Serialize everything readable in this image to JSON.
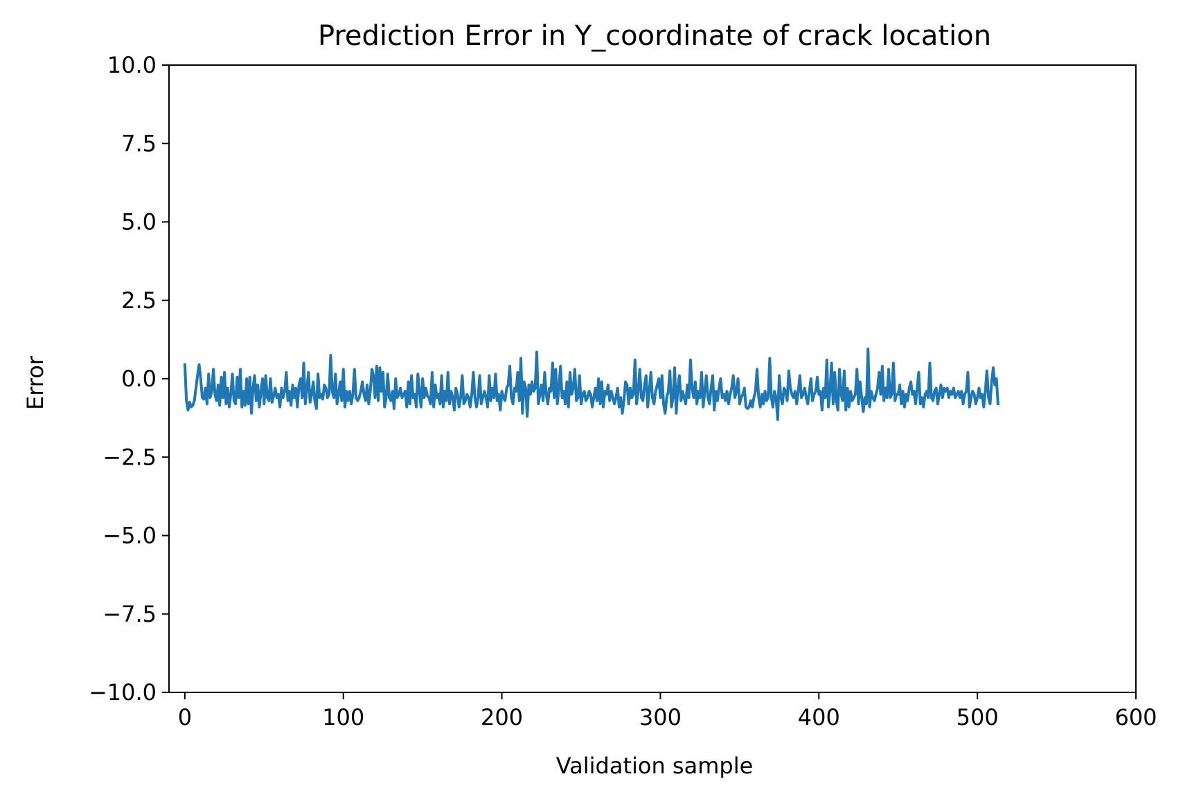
{
  "chart_data": {
    "type": "line",
    "title": "Prediction Error in Y_coordinate of crack location",
    "xlabel": "Validation sample",
    "ylabel": "Error",
    "xlim": [
      -10,
      600
    ],
    "ylim": [
      -10,
      10
    ],
    "x_ticks": [
      0,
      100,
      200,
      300,
      400,
      500,
      600
    ],
    "x_tick_labels": [
      "0",
      "100",
      "200",
      "300",
      "400",
      "500",
      "600"
    ],
    "y_ticks": [
      10,
      7.5,
      5,
      2.5,
      0,
      -2.5,
      -5,
      -7.5,
      -10
    ],
    "y_tick_labels": [
      "10.0",
      "7.5",
      "5.0",
      "2.5",
      "0.0",
      "−2.5",
      "−5.0",
      "−7.5",
      "−10.0"
    ],
    "grid": false,
    "series": [
      {
        "color": "#1f77b4",
        "x_start": 0,
        "x_step": 1,
        "y": [
          0.45,
          -0.7,
          -1.0,
          -0.75,
          -0.9,
          -0.85,
          -0.7,
          -0.3,
          0.1,
          0.45,
          0.0,
          -0.6,
          -0.65,
          -0.3,
          -0.8,
          0.15,
          -0.6,
          -0.4,
          0.3,
          -0.5,
          -0.7,
          -0.2,
          -0.85,
          0.05,
          -0.6,
          0.2,
          -0.8,
          -0.3,
          -0.9,
          -0.5,
          0.15,
          -0.7,
          -0.8,
          0.05,
          -0.6,
          0.3,
          -0.9,
          -0.4,
          -0.85,
          0.0,
          -0.8,
          0.05,
          -1.1,
          -0.3,
          0.1,
          -0.7,
          -0.2,
          -0.9,
          -0.4,
          0.0,
          -0.8,
          0.1,
          -0.6,
          -0.7,
          0.0,
          -0.75,
          -0.55,
          -0.3,
          -0.6,
          -0.5,
          -0.9,
          -0.3,
          -0.6,
          -0.4,
          0.2,
          -0.7,
          -0.4,
          -0.85,
          -0.2,
          -0.6,
          -0.3,
          -0.9,
          -0.2,
          0.0,
          -0.6,
          0.5,
          -0.8,
          -0.3,
          0.2,
          -0.75,
          -0.5,
          -0.1,
          -0.7,
          -0.95,
          0.15,
          -0.6,
          -0.5,
          -0.65,
          -0.2,
          -0.3,
          -0.6,
          -0.5,
          0.75,
          -0.4,
          -0.6,
          0.15,
          -0.8,
          -0.5,
          -0.1,
          -0.7,
          0.3,
          -0.9,
          -0.4,
          -0.7,
          -0.4,
          -0.8,
          -0.5,
          0.3,
          -0.6,
          -0.7,
          -0.6,
          -0.4,
          -0.1,
          -0.5,
          -0.7,
          -0.2,
          -0.8,
          -0.4,
          0.3,
          0.1,
          -0.6,
          0.4,
          -0.7,
          0.35,
          -0.4,
          0.2,
          -0.9,
          -0.6,
          0.15,
          -0.6,
          -0.7,
          -0.4,
          -0.95,
          0.0,
          -0.6,
          -0.5,
          -0.3,
          -0.6,
          -0.5,
          -0.4,
          -0.9,
          -0.1,
          -0.8,
          0.1,
          -0.6,
          -0.5,
          -0.9,
          0.15,
          -0.4,
          -0.9,
          0.0,
          -0.6,
          -0.3,
          -0.55,
          -0.6,
          -0.8,
          0.2,
          -0.9,
          -0.2,
          -0.6,
          -0.5,
          -0.8,
          0.1,
          -0.9,
          -0.4,
          -0.7,
          0.2,
          -0.8,
          -0.4,
          -0.6,
          -1.0,
          -0.3,
          -0.5,
          -0.9,
          -0.6,
          0.1,
          -0.8,
          -0.7,
          -0.5,
          -0.6,
          -0.9,
          -0.5,
          0.2,
          -0.6,
          -0.9,
          -0.6,
          0.1,
          -0.8,
          -0.6,
          -0.4,
          -0.6,
          -0.9,
          0.1,
          -0.7,
          -0.3,
          -0.6,
          0.15,
          -0.7,
          -0.5,
          -1.0,
          -0.4,
          -0.6,
          -0.7,
          -0.3,
          -0.2,
          0.4,
          -0.6,
          -0.8,
          -0.3,
          -0.4,
          0.2,
          -0.7,
          0.65,
          -1.1,
          -0.1,
          -0.3,
          -1.2,
          -0.2,
          -0.5,
          -0.1,
          -0.4,
          -0.3,
          0.85,
          -0.8,
          -0.5,
          -0.2,
          -0.7,
          0.2,
          -0.5,
          -0.8,
          -0.3,
          -0.4,
          0.5,
          -0.6,
          0.3,
          -0.8,
          -0.3,
          0.4,
          -0.6,
          -0.4,
          -0.8,
          -0.1,
          -0.9,
          0.2,
          -0.5,
          -0.3,
          0.3,
          -0.7,
          -0.6,
          0.1,
          -0.8,
          -0.5,
          -0.4,
          -0.7,
          -0.6,
          -0.4,
          -0.5,
          -0.9,
          -0.6,
          -0.3,
          -0.7,
          0.0,
          -0.8,
          -0.1,
          -0.9,
          -0.4,
          -0.5,
          -0.2,
          -0.7,
          -0.4,
          -0.6,
          -0.8,
          -0.6,
          -0.3,
          -0.9,
          -0.6,
          -1.1,
          -0.7,
          -0.1,
          -0.2,
          -0.8,
          -0.3,
          -0.6,
          -0.5,
          0.6,
          -0.8,
          -0.4,
          0.3,
          -0.6,
          -0.7,
          -0.2,
          0.1,
          -0.9,
          -0.4,
          0.2,
          -0.6,
          -0.8,
          -0.4,
          -0.2,
          0.0,
          -0.6,
          0.1,
          -0.8,
          -1.1,
          -0.6,
          -0.4,
          0.25,
          -0.9,
          -0.6,
          0.35,
          -1.1,
          -0.3,
          0.1,
          -0.7,
          -0.4,
          -0.6,
          -0.8,
          -0.2,
          -0.6,
          0.6,
          -0.3,
          -0.6,
          -0.1,
          -0.8,
          -0.4,
          -0.6,
          0.2,
          -0.9,
          -0.4,
          0.1,
          -0.6,
          -0.8,
          -0.3,
          0.1,
          -1.0,
          -0.4,
          -0.7,
          -0.3,
          0.0,
          -0.6,
          -0.5,
          -0.7,
          -0.4,
          -0.8,
          -0.5,
          -0.3,
          0.1,
          -0.6,
          -0.4,
          0.0,
          -0.8,
          -0.6,
          -0.5,
          -0.3,
          -0.9,
          -0.95,
          -0.9,
          -0.7,
          -0.9,
          -0.6,
          -0.4,
          0.3,
          -0.6,
          -0.9,
          -0.5,
          -0.8,
          -0.4,
          -0.7,
          -0.6,
          0.65,
          -0.6,
          -0.9,
          -0.4,
          -0.6,
          -1.3,
          0.1,
          -0.6,
          -0.8,
          -0.3,
          -0.4,
          -0.7,
          0.25,
          -0.3,
          -0.5,
          -0.6,
          -0.4,
          -0.8,
          -0.4,
          0.1,
          -0.6,
          -0.5,
          -0.3,
          -0.6,
          -0.8,
          -0.4,
          0.0,
          -0.7,
          -0.5,
          -0.4,
          0.05,
          -0.5,
          -0.4,
          -1.0,
          -0.3,
          -0.6,
          0.6,
          -0.9,
          -0.4,
          0.5,
          -0.8,
          0.2,
          -0.7,
          -1.0,
          0.3,
          -0.5,
          -0.7,
          0.25,
          -1.0,
          -0.3,
          -0.9,
          -0.4,
          -0.7,
          -0.6,
          -0.5,
          0.3,
          -0.8,
          -0.1,
          -0.6,
          -1.05,
          -0.6,
          -0.8,
          0.95,
          -0.9,
          -0.4,
          -0.6,
          -0.7,
          -0.5,
          -0.3,
          0.2,
          -0.5,
          0.4,
          -0.7,
          -0.3,
          -0.6,
          0.3,
          -0.6,
          -0.5,
          0.5,
          -0.7,
          -0.5,
          -0.5,
          -0.2,
          -0.8,
          -0.4,
          -0.9,
          -0.5,
          -0.7,
          -0.3,
          -0.1,
          -0.5,
          -0.4,
          -0.8,
          -0.3,
          0.2,
          -0.8,
          -0.6,
          -0.9,
          -0.5,
          -0.4,
          -0.6,
          0.5,
          -0.6,
          -0.7,
          -0.4,
          -0.3,
          -0.8,
          -0.5,
          -0.2,
          -0.6,
          -0.3,
          -0.4,
          -0.3,
          -0.6,
          -0.4,
          -0.5,
          -0.3,
          -0.6,
          -0.5,
          -0.4,
          -0.6,
          -0.4,
          -0.8,
          -0.5,
          -0.4,
          0.2,
          -0.9,
          -0.6,
          -0.4,
          -0.5,
          -0.8,
          -0.6,
          -0.3,
          -0.6,
          -0.5,
          -0.9,
          -0.4,
          0.25,
          -0.6,
          -0.8,
          -0.1,
          0.35,
          -0.2,
          0.0,
          -0.8
        ]
      }
    ]
  }
}
